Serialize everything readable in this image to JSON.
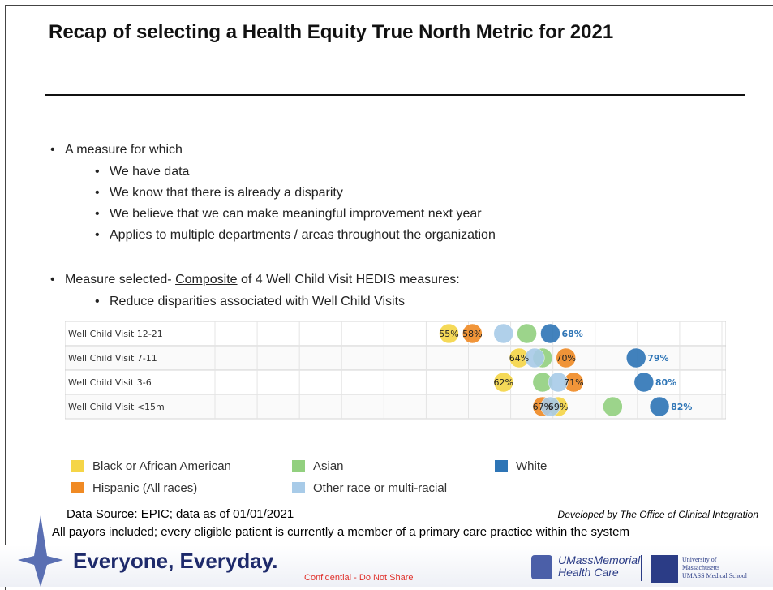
{
  "header": {
    "title": "Recap of selecting a Health Equity True North Metric for 2021"
  },
  "bullets": {
    "intro": "A measure for which",
    "sub": [
      "We have data",
      "We know that there is already a disparity",
      "We believe that we can make meaningful improvement next year",
      "Applies to multiple departments / areas throughout the organization"
    ],
    "selected": [
      "Measure selected- ",
      "Composite",
      " of 4 Well Child Visit HEDIS measures:"
    ],
    "selected_sub": "Reduce disparities associated with Well Child Visits"
  },
  "chart_data": {
    "type": "dot",
    "categories": [
      "Well Child Visit 12-21",
      "Well Child Visit 7-11",
      "Well Child Visit 3-6",
      "Well Child Visit <15m"
    ],
    "xlim": [
      25,
      90
    ],
    "series": [
      {
        "name": "Black or African American",
        "color": "#f5d547",
        "values": [
          55,
          64,
          62,
          69
        ],
        "value_labels": [
          "55%",
          "64%",
          "62%",
          "69%"
        ]
      },
      {
        "name": "Hispanic (All races)",
        "color": "#f08a24",
        "values": [
          58,
          70,
          71,
          67
        ],
        "value_labels": [
          "58%",
          "70%",
          "71%",
          "67%"
        ]
      },
      {
        "name": "Asian",
        "color": "#92d07f",
        "values": [
          65,
          67,
          67,
          76
        ]
      },
      {
        "name": "Other race or multi-racial",
        "color": "#a8cbe8",
        "values": [
          62,
          66,
          69,
          68
        ]
      },
      {
        "name": "White",
        "color": "#2e75b6",
        "values": [
          68,
          79,
          80,
          82
        ],
        "value_labels": [
          "68%",
          "79%",
          "80%",
          "82%"
        ]
      }
    ]
  },
  "footer": {
    "source": "Data Source:  EPIC; data as of 01/01/2021",
    "developed": "Developed by The Office of Clinical Integration",
    "note": "All payors included; every eligible patient is currently a member of a primary care practice within the system",
    "slogan": "Everyone, Everyday.",
    "confidential": "Confidential - Do Not Share",
    "brand": [
      "UMassMemorial",
      "Health Care"
    ],
    "univ": [
      "University of",
      "Massachusetts",
      "UMASS Medical School"
    ]
  }
}
